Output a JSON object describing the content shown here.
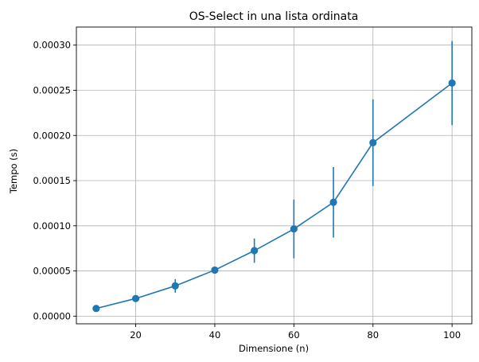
{
  "chart_data": {
    "type": "line",
    "title": "OS-Select in una lista ordinata",
    "xlabel": "Dimensione (n)",
    "ylabel": "Tempo (s)",
    "xlim": [
      5,
      105
    ],
    "ylim": [
      -8.5e-06,
      0.00032
    ],
    "xticks": [
      20,
      40,
      60,
      80,
      100
    ],
    "yticks": [
      0.0,
      5e-05,
      0.0001,
      0.00015,
      0.0002,
      0.00025,
      0.0003
    ],
    "xtick_labels": [
      "20",
      "40",
      "60",
      "80",
      "100"
    ],
    "ytick_labels": [
      "0.00000",
      "0.00005",
      "0.00010",
      "0.00015",
      "0.00020",
      "0.00025",
      "0.00030"
    ],
    "grid": true,
    "color": "#1f77b4",
    "series": [
      {
        "x": [
          10,
          20,
          30,
          40,
          50,
          60,
          70,
          80,
          90,
          100
        ],
        "y": [
          8.5e-06,
          1.95e-05,
          3.35e-05,
          5.1e-05,
          7.25e-05,
          9.65e-05,
          0.000126,
          0.000192,
          null,
          0.000258
        ],
        "yerr": [
          1.5e-06,
          2e-06,
          7.5e-06,
          2e-06,
          1.35e-05,
          3.25e-05,
          3.9e-05,
          4.8e-05,
          null,
          4.65e-05
        ]
      }
    ]
  }
}
